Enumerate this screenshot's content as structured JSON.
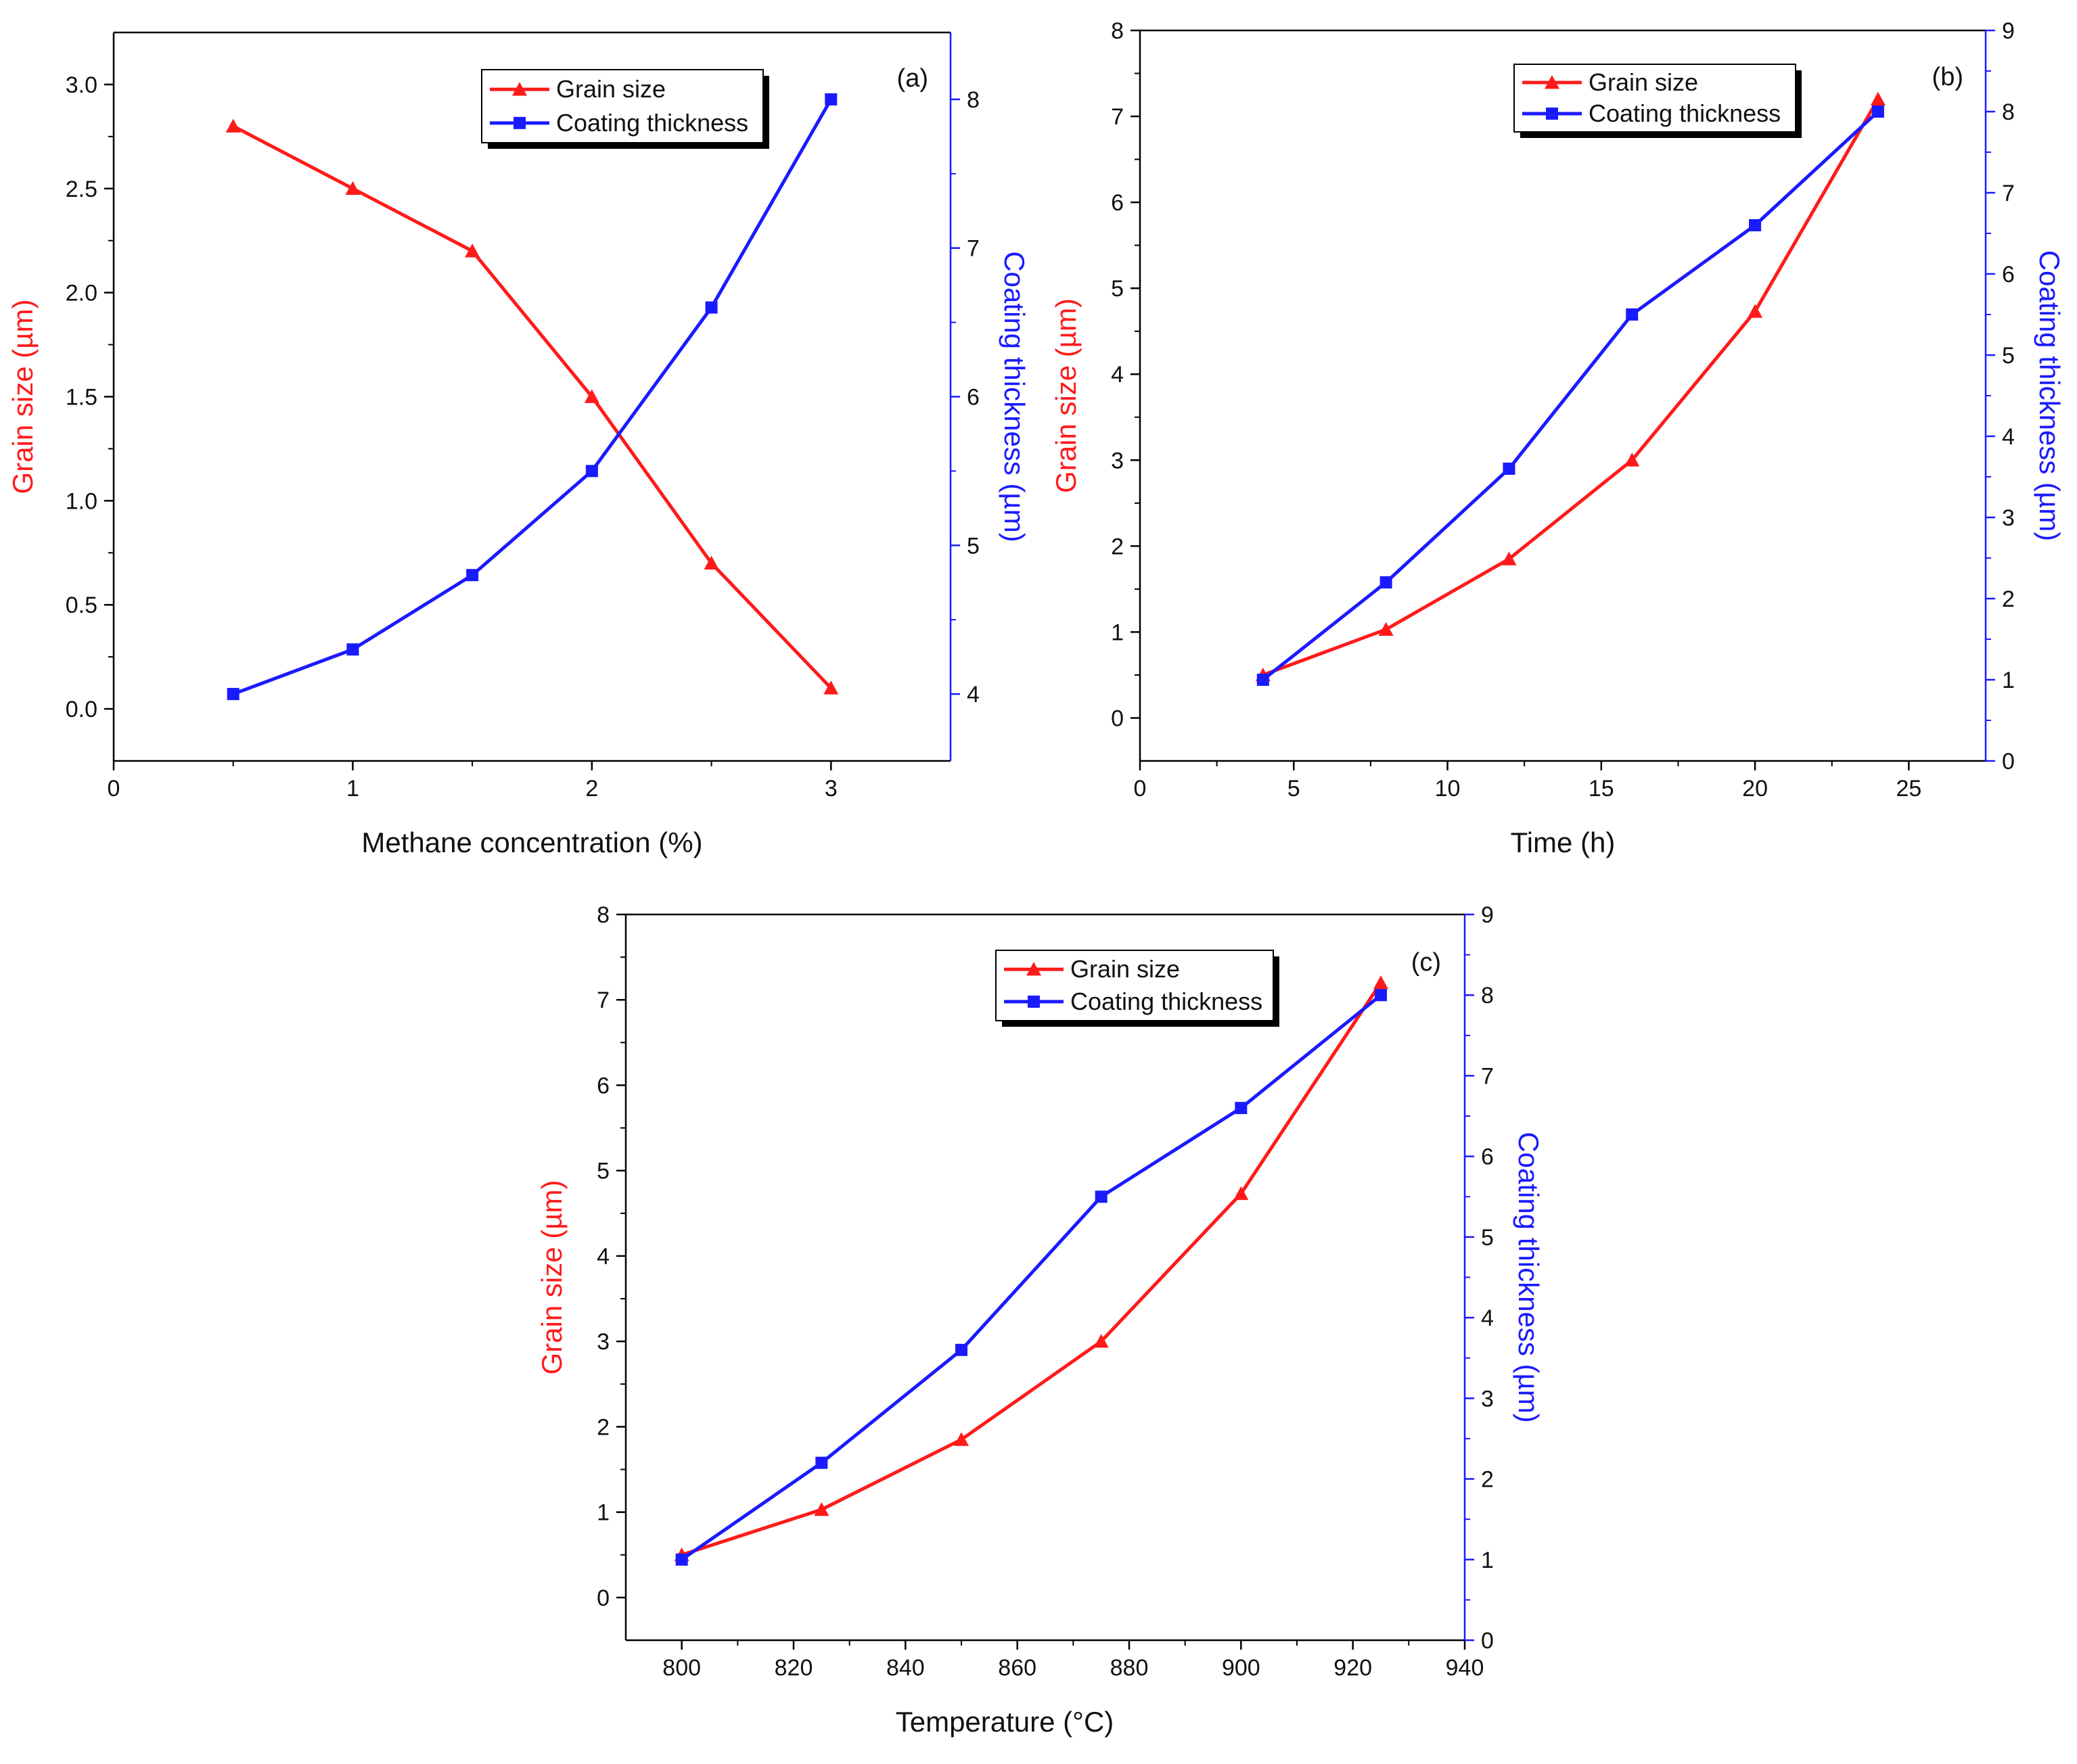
{
  "colors": {
    "grain": "#ff1a1a",
    "coating": "#1a1aff",
    "axis": "#000000",
    "rightAxis": "#1a1aff"
  },
  "chart_data": [
    {
      "type": "line",
      "panel_label": "(a)",
      "xlabel": "Methane concentration (%)",
      "ylabel_left": "Grain size (µm)",
      "ylabel_right": "Coating thickness (µm)",
      "xlim": [
        0,
        3.5
      ],
      "ylim_left": [
        -0.25,
        3.25
      ],
      "ylim_right": [
        3.55,
        8.45
      ],
      "x_ticks": [
        0,
        1,
        2,
        3
      ],
      "y_left_ticks": [
        0.0,
        0.5,
        1.0,
        1.5,
        2.0,
        2.5,
        3.0
      ],
      "y_left_tick_labels": [
        "0.0",
        "0.5",
        "1.0",
        "1.5",
        "2.0",
        "2.5",
        "3.0"
      ],
      "y_right_ticks": [
        4,
        5,
        6,
        7,
        8
      ],
      "legend": [
        "Grain size",
        "Coating thickness"
      ],
      "series": [
        {
          "name": "Grain size",
          "axis": "left",
          "marker": "triangle",
          "x": [
            0.5,
            1,
            1.5,
            2,
            2.5,
            3
          ],
          "values": [
            2.8,
            2.5,
            2.2,
            1.5,
            0.7,
            0.1
          ]
        },
        {
          "name": "Coating thickness",
          "axis": "right",
          "marker": "square",
          "x": [
            0.5,
            1,
            1.5,
            2,
            2.5,
            3
          ],
          "values": [
            4.0,
            4.3,
            4.8,
            5.5,
            6.6,
            8.0
          ]
        }
      ]
    },
    {
      "type": "line",
      "panel_label": "(b)",
      "xlabel": "Time (h)",
      "ylabel_left": "Grain size (µm)",
      "ylabel_right": "Coating thickness (µm)",
      "xlim": [
        0,
        27.5
      ],
      "ylim_left": [
        -0.5,
        8
      ],
      "ylim_right": [
        0,
        9
      ],
      "x_ticks": [
        0,
        5,
        10,
        15,
        20,
        25
      ],
      "y_left_ticks": [
        0,
        1,
        2,
        3,
        4,
        5,
        6,
        7,
        8
      ],
      "y_left_tick_labels": [
        "0",
        "1",
        "2",
        "3",
        "4",
        "5",
        "6",
        "7",
        "8"
      ],
      "y_right_ticks": [
        0,
        1,
        2,
        3,
        4,
        5,
        6,
        7,
        8,
        9
      ],
      "legend": [
        "Grain size",
        "Coating thickness"
      ],
      "series": [
        {
          "name": "Grain size",
          "axis": "left",
          "marker": "triangle",
          "x": [
            4,
            8,
            12,
            16,
            20,
            24
          ],
          "values": [
            0.5,
            1.03,
            1.85,
            3.0,
            4.73,
            7.2
          ]
        },
        {
          "name": "Coating thickness",
          "axis": "right",
          "marker": "square",
          "x": [
            4,
            8,
            12,
            16,
            20,
            24
          ],
          "values": [
            1.0,
            2.2,
            3.6,
            5.5,
            6.6,
            8.0
          ]
        }
      ]
    },
    {
      "type": "line",
      "panel_label": "(c)",
      "xlabel": "Temperature (°C)",
      "ylabel_left": "Grain size (µm)",
      "ylabel_right": "Coating thickness (µm)",
      "xlim": [
        790,
        940
      ],
      "ylim_left": [
        -0.5,
        8
      ],
      "ylim_right": [
        0,
        9
      ],
      "x_ticks": [
        800,
        820,
        840,
        860,
        880,
        900,
        920,
        940
      ],
      "y_left_ticks": [
        0,
        1,
        2,
        3,
        4,
        5,
        6,
        7,
        8
      ],
      "y_left_tick_labels": [
        "0",
        "1",
        "2",
        "3",
        "4",
        "5",
        "6",
        "7",
        "8"
      ],
      "y_right_ticks": [
        0,
        1,
        2,
        3,
        4,
        5,
        6,
        7,
        8,
        9
      ],
      "legend": [
        "Grain size",
        "Coating thickness"
      ],
      "series": [
        {
          "name": "Grain size",
          "axis": "left",
          "marker": "triangle",
          "x": [
            800,
            825,
            850,
            875,
            900,
            925
          ],
          "values": [
            0.5,
            1.03,
            1.85,
            3.0,
            4.73,
            7.2
          ]
        },
        {
          "name": "Coating thickness",
          "axis": "right",
          "marker": "square",
          "x": [
            800,
            825,
            850,
            875,
            900,
            925
          ],
          "values": [
            1.0,
            2.2,
            3.6,
            5.5,
            6.6,
            8.0
          ]
        }
      ]
    }
  ]
}
